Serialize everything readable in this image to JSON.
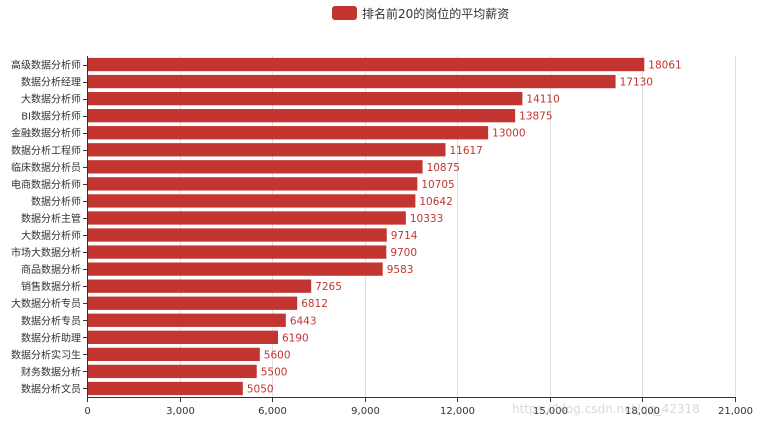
{
  "legend": {
    "label": "排名前20的岗位的平均薪资"
  },
  "watermark": "https://blog.csdn.net/qq_42318",
  "colors": {
    "bar": "#c23531",
    "axis": "#333333",
    "grid": "#e0e0e0",
    "text": "#333333"
  },
  "chart_data": {
    "type": "bar",
    "orientation": "horizontal",
    "categories": [
      "高级数据分析师",
      "数据分析经理",
      "大数据分析师",
      "BI数据分析师",
      "金融数据分析师",
      "数据分析工程师",
      "临床数据分析员",
      "电商数据分析师",
      "数据分析师",
      "数据分析主管",
      "大数据分析师",
      "市场大数据分析",
      "商品数据分析",
      "销售数据分析",
      "大数据分析专员",
      "数据分析专员",
      "数据分析助理",
      "数据分析实习生",
      "财务数据分析",
      "数据分析文员"
    ],
    "series": [
      {
        "name": "排名前20的岗位的平均薪资",
        "values": [
          18061,
          17130,
          14110,
          13875,
          13000,
          11617,
          10875,
          10705,
          10642,
          10333,
          9714,
          9700,
          9583,
          7265,
          6812,
          6443,
          6190,
          5600,
          5500,
          5050
        ]
      }
    ],
    "xlim": [
      0,
      21000
    ],
    "xticks": [
      "0",
      "3,000",
      "6,000",
      "9,000",
      "12,000",
      "15,000",
      "18,000",
      "21,000"
    ],
    "xtick_values": [
      0,
      3000,
      6000,
      9000,
      12000,
      15000,
      18000,
      21000
    ],
    "grid": true,
    "legend_position": "top-center",
    "data_labels": "right"
  }
}
